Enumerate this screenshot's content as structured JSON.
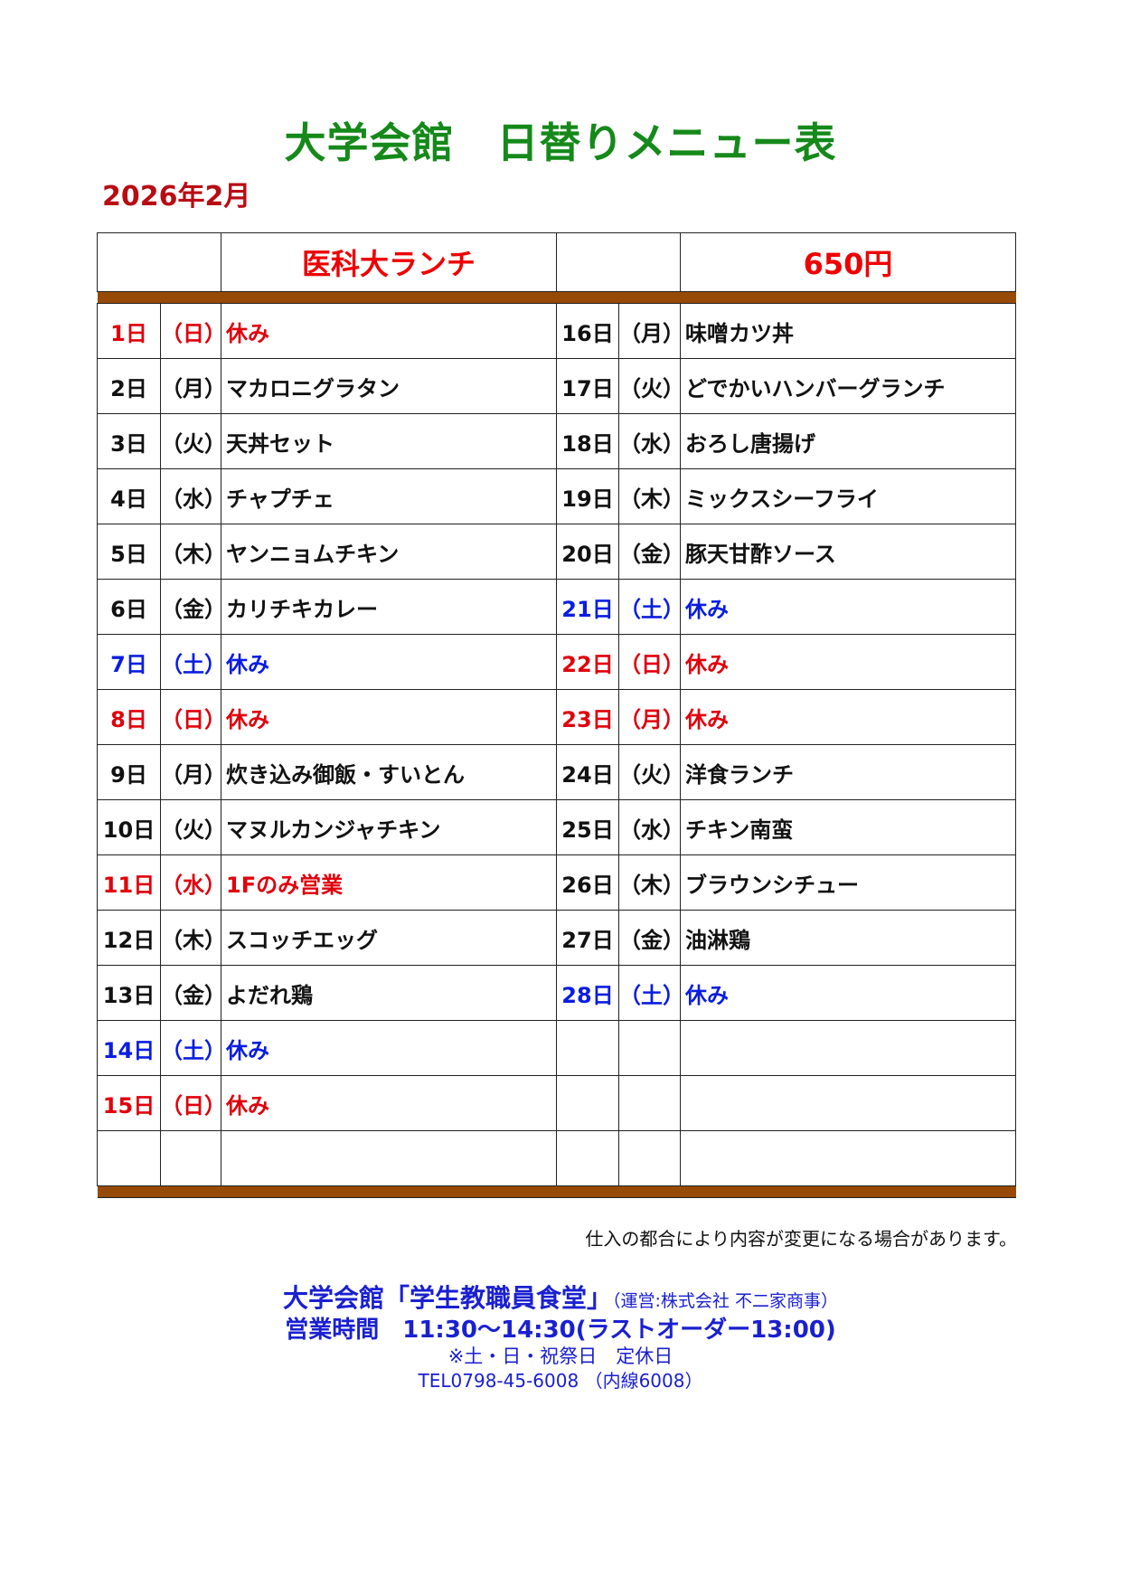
{
  "title": "大学会館　日替りメニュー表",
  "month": "2026年2月",
  "header": {
    "menu_name": "医科大ランチ",
    "price": "650円"
  },
  "colors": {
    "title": "#15891a",
    "month": "#b80c14",
    "holiday": "#e0000c",
    "saturday": "#0a1de0",
    "band": "#964a05"
  },
  "rows": [
    {
      "l": {
        "day": "1日",
        "wd": "（日）",
        "menu": "休み",
        "c": "red"
      },
      "r": {
        "day": "16日",
        "wd": "（月）",
        "menu": "味噌カツ丼",
        "c": ""
      }
    },
    {
      "l": {
        "day": "2日",
        "wd": "（月）",
        "menu": "マカロニグラタン",
        "c": ""
      },
      "r": {
        "day": "17日",
        "wd": "（火）",
        "menu": "どでかいハンバーグランチ",
        "c": ""
      }
    },
    {
      "l": {
        "day": "3日",
        "wd": "（火）",
        "menu": "天丼セット",
        "c": ""
      },
      "r": {
        "day": "18日",
        "wd": "（水）",
        "menu": "おろし唐揚げ",
        "c": ""
      }
    },
    {
      "l": {
        "day": "4日",
        "wd": "（水）",
        "menu": "チャプチェ",
        "c": ""
      },
      "r": {
        "day": "19日",
        "wd": "（木）",
        "menu": "ミックスシーフライ",
        "c": ""
      }
    },
    {
      "l": {
        "day": "5日",
        "wd": "（木）",
        "menu": "ヤンニョムチキン",
        "c": ""
      },
      "r": {
        "day": "20日",
        "wd": "（金）",
        "menu": "豚天甘酢ソース",
        "c": ""
      }
    },
    {
      "l": {
        "day": "6日",
        "wd": "（金）",
        "menu": "カリチキカレー",
        "c": ""
      },
      "r": {
        "day": "21日",
        "wd": "（土）",
        "menu": "休み",
        "c": "blue"
      }
    },
    {
      "l": {
        "day": "7日",
        "wd": "（土）",
        "menu": "休み",
        "c": "blue"
      },
      "r": {
        "day": "22日",
        "wd": "（日）",
        "menu": "休み",
        "c": "red"
      }
    },
    {
      "l": {
        "day": "8日",
        "wd": "（日）",
        "menu": "休み",
        "c": "red"
      },
      "r": {
        "day": "23日",
        "wd": "（月）",
        "menu": "休み",
        "c": "red"
      }
    },
    {
      "l": {
        "day": "9日",
        "wd": "（月）",
        "menu": "炊き込み御飯・すいとん",
        "c": ""
      },
      "r": {
        "day": "24日",
        "wd": "（火）",
        "menu": "洋食ランチ",
        "c": ""
      }
    },
    {
      "l": {
        "day": "10日",
        "wd": "（火）",
        "menu": "マヌルカンジャチキン",
        "c": ""
      },
      "r": {
        "day": "25日",
        "wd": "（水）",
        "menu": "チキン南蛮",
        "c": ""
      }
    },
    {
      "l": {
        "day": "11日",
        "wd": "（水）",
        "menu": "1Fのみ営業",
        "c": "red"
      },
      "r": {
        "day": "26日",
        "wd": "（木）",
        "menu": "ブラウンシチュー",
        "c": ""
      }
    },
    {
      "l": {
        "day": "12日",
        "wd": "（木）",
        "menu": "スコッチエッグ",
        "c": ""
      },
      "r": {
        "day": "27日",
        "wd": "（金）",
        "menu": "油淋鶏",
        "c": ""
      }
    },
    {
      "l": {
        "day": "13日",
        "wd": "（金）",
        "menu": "よだれ鶏",
        "c": ""
      },
      "r": {
        "day": "28日",
        "wd": "（土）",
        "menu": "休み",
        "c": "blue"
      }
    },
    {
      "l": {
        "day": "14日",
        "wd": "（土）",
        "menu": "休み",
        "c": "blue"
      },
      "r": {
        "day": "",
        "wd": "",
        "menu": "",
        "c": ""
      }
    },
    {
      "l": {
        "day": "15日",
        "wd": "（日）",
        "menu": "休み",
        "c": "red"
      },
      "r": {
        "day": "",
        "wd": "",
        "menu": "",
        "c": ""
      }
    },
    {
      "l": {
        "day": "",
        "wd": "",
        "menu": "",
        "c": ""
      },
      "r": {
        "day": "",
        "wd": "",
        "menu": "",
        "c": ""
      }
    }
  ],
  "note": "仕入の都合により内容が変更になる場合があります。",
  "footer": {
    "name": "大学会館「学生教職員食堂」",
    "operator": "（運営:株式会社 不二家商事）",
    "hours": "営業時間　11:30～14:30(ラストオーダー13:00)",
    "closed": "※土・日・祝祭日　定休日",
    "tel": "TEL0798-45-6008 （内線6008）"
  }
}
